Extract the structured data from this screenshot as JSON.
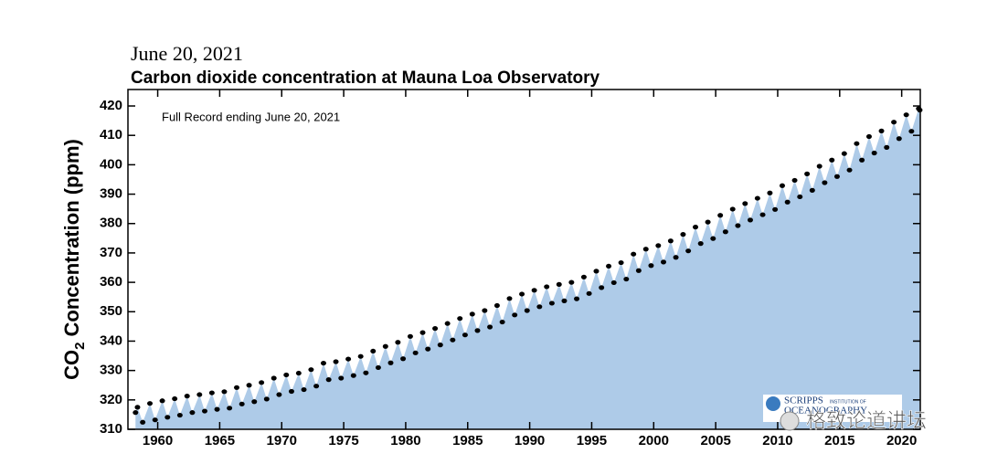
{
  "chart_data": {
    "type": "scatter",
    "date": "June 20, 2021",
    "title": "Carbon dioxide concentration at Mauna Loa Observatory",
    "annotation": "Full Record ending June 20, 2021",
    "y_label": [
      "CO",
      "2",
      "Concentration (ppm)"
    ],
    "logo": [
      "SCRIPPS",
      "INSTITUTION OF",
      "OCEANOGRAPHY"
    ],
    "watermark": "格致论道讲坛",
    "xlim": [
      1957.6,
      2021.5
    ],
    "xticks": [
      1960,
      1965,
      1970,
      1975,
      1980,
      1985,
      1990,
      1995,
      2000,
      2005,
      2010,
      2015,
      2020
    ],
    "ylim": [
      310,
      425.6
    ],
    "yticks": [
      310,
      320,
      330,
      340,
      350,
      360,
      370,
      380,
      390,
      400,
      410,
      420
    ],
    "marker_color": "#000000",
    "fill_color": "#aecbe8",
    "x": [
      1958.21,
      1958.37,
      1958.79,
      1959.37,
      1959.79,
      1960.37,
      1960.79,
      1961.37,
      1961.79,
      1962.37,
      1962.79,
      1963.37,
      1963.79,
      1964.37,
      1964.79,
      1965.37,
      1965.79,
      1966.37,
      1966.79,
      1967.37,
      1967.79,
      1968.37,
      1968.79,
      1969.37,
      1969.79,
      1970.37,
      1970.79,
      1971.37,
      1971.79,
      1972.37,
      1972.79,
      1973.37,
      1973.79,
      1974.37,
      1974.79,
      1975.37,
      1975.79,
      1976.37,
      1976.79,
      1977.37,
      1977.79,
      1978.37,
      1978.79,
      1979.37,
      1979.79,
      1980.37,
      1980.79,
      1981.37,
      1981.79,
      1982.37,
      1982.79,
      1983.37,
      1983.79,
      1984.37,
      1984.79,
      1985.37,
      1985.79,
      1986.37,
      1986.79,
      1987.37,
      1987.79,
      1988.37,
      1988.79,
      1989.37,
      1989.79,
      1990.37,
      1990.79,
      1991.37,
      1991.79,
      1992.37,
      1992.79,
      1993.37,
      1993.79,
      1994.37,
      1994.79,
      1995.37,
      1995.79,
      1996.37,
      1996.79,
      1997.37,
      1997.79,
      1998.37,
      1998.79,
      1999.37,
      1999.79,
      2000.37,
      2000.79,
      2001.37,
      2001.79,
      2002.37,
      2002.79,
      2003.37,
      2003.79,
      2004.37,
      2004.79,
      2005.37,
      2005.79,
      2006.37,
      2006.79,
      2007.37,
      2007.79,
      2008.37,
      2008.79,
      2009.37,
      2009.79,
      2010.37,
      2010.79,
      2011.37,
      2011.79,
      2012.37,
      2012.79,
      2013.37,
      2013.79,
      2014.37,
      2014.79,
      2015.37,
      2015.79,
      2016.37,
      2016.79,
      2017.37,
      2017.79,
      2018.37,
      2018.79,
      2019.37,
      2019.79,
      2020.37,
      2020.79,
      2021.37,
      2021.46
    ],
    "values": [
      315.7,
      317.5,
      312.4,
      318.8,
      313.2,
      319.7,
      314.1,
      320.4,
      314.8,
      321.3,
      315.7,
      321.8,
      316.2,
      322.4,
      316.8,
      322.8,
      317.2,
      324.2,
      318.6,
      325.0,
      319.4,
      325.9,
      320.3,
      327.4,
      321.8,
      328.5,
      322.9,
      329.1,
      323.5,
      330.3,
      324.7,
      332.5,
      326.9,
      333.0,
      327.4,
      333.9,
      328.3,
      334.8,
      329.2,
      336.6,
      331.0,
      338.2,
      332.6,
      339.6,
      334.0,
      341.6,
      336.0,
      342.9,
      337.3,
      344.3,
      338.7,
      346.0,
      340.4,
      347.7,
      342.1,
      349.2,
      343.6,
      350.4,
      344.8,
      352.1,
      346.5,
      354.5,
      348.9,
      356.0,
      350.4,
      357.3,
      351.7,
      358.5,
      352.9,
      359.3,
      353.7,
      360.0,
      354.4,
      361.8,
      356.2,
      363.8,
      358.2,
      365.5,
      359.9,
      366.7,
      361.1,
      369.6,
      364.0,
      371.3,
      365.7,
      372.5,
      366.9,
      374.1,
      368.5,
      376.3,
      370.7,
      378.8,
      373.2,
      380.5,
      374.9,
      382.8,
      377.2,
      384.9,
      379.3,
      386.8,
      381.2,
      388.6,
      383.0,
      390.4,
      384.8,
      392.9,
      387.3,
      394.7,
      389.1,
      396.9,
      391.3,
      399.5,
      393.9,
      401.6,
      396.0,
      403.8,
      398.2,
      407.2,
      401.6,
      409.6,
      404.0,
      411.5,
      405.9,
      414.5,
      408.9,
      417.0,
      411.4,
      419.1,
      418.6
    ]
  }
}
